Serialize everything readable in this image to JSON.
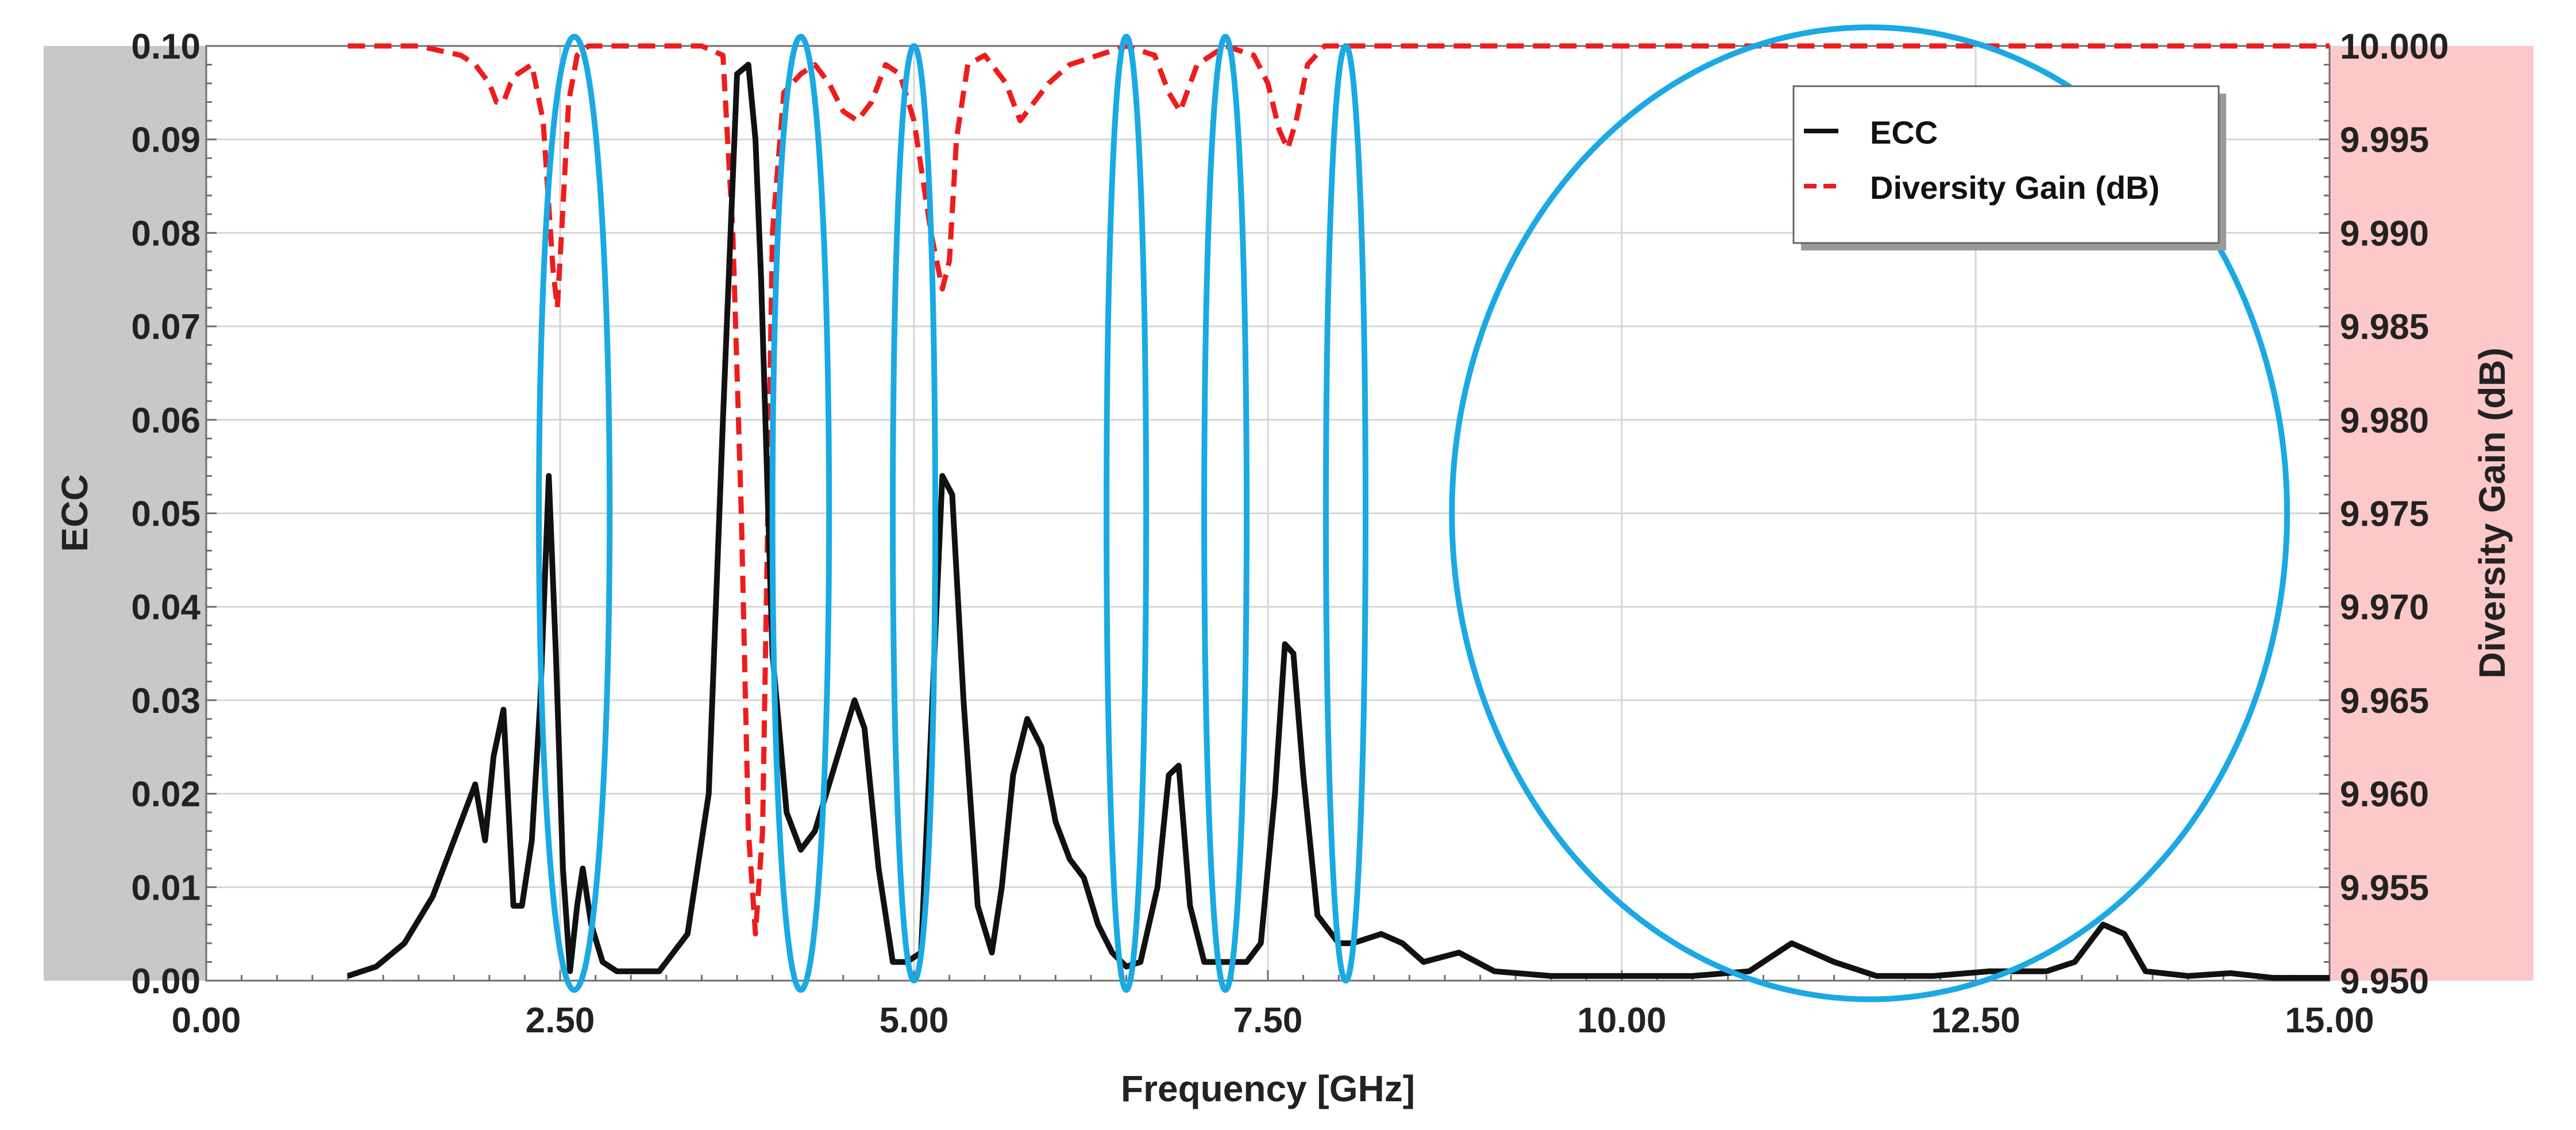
{
  "chart_data": {
    "type": "line",
    "title": "",
    "xlabel": "Frequency [GHz]",
    "ylabel": "ECC",
    "y2label": "Diversity Gain (dB)",
    "xlim": [
      0,
      15
    ],
    "ylim": [
      0,
      0.1
    ],
    "y2lim": [
      9.95,
      10.0
    ],
    "x_ticks": [
      "0.00",
      "2.50",
      "5.00",
      "7.50",
      "10.00",
      "12.50",
      "15.00"
    ],
    "y_ticks": [
      "0.00",
      "0.01",
      "0.02",
      "0.03",
      "0.04",
      "0.05",
      "0.06",
      "0.07",
      "0.08",
      "0.09",
      "0.10"
    ],
    "y2_ticks": [
      "9.950",
      "9.955",
      "9.960",
      "9.965",
      "9.970",
      "9.975",
      "9.980",
      "9.985",
      "9.990",
      "9.995",
      "10.000"
    ],
    "grid": true,
    "legend_position": "top-right",
    "colors": {
      "ecc": "#111111",
      "dg": "#ee1c1c",
      "highlight": "#1ba9e3",
      "left_band": "#c8c8c8",
      "right_band": "#fcc8c8",
      "grid": "#d6d6d6"
    },
    "series": [
      {
        "name": "ECC",
        "axis": "left",
        "style": "solid",
        "x": [
          1.0,
          1.2,
          1.4,
          1.6,
          1.75,
          1.9,
          1.97,
          2.03,
          2.1,
          2.17,
          2.23,
          2.3,
          2.36,
          2.42,
          2.47,
          2.52,
          2.57,
          2.62,
          2.66,
          2.72,
          2.8,
          2.9,
          3.0,
          3.2,
          3.4,
          3.55,
          3.65,
          3.75,
          3.83,
          3.88,
          3.92,
          4.0,
          4.1,
          4.2,
          4.3,
          4.4,
          4.5,
          4.58,
          4.65,
          4.75,
          4.85,
          4.95,
          5.05,
          5.13,
          5.2,
          5.27,
          5.35,
          5.45,
          5.55,
          5.62,
          5.7,
          5.8,
          5.9,
          6.0,
          6.1,
          6.2,
          6.3,
          6.4,
          6.5,
          6.6,
          6.72,
          6.8,
          6.87,
          6.95,
          7.05,
          7.2,
          7.35,
          7.45,
          7.55,
          7.62,
          7.68,
          7.75,
          7.85,
          8.0,
          8.1,
          8.3,
          8.45,
          8.6,
          8.85,
          9.1,
          9.5,
          10.0,
          10.5,
          10.9,
          11.2,
          11.5,
          11.8,
          12.2,
          12.6,
          13.0,
          13.2,
          13.4,
          13.55,
          13.7,
          14.0,
          14.3,
          14.6,
          15.0
        ],
        "values": [
          0.0005,
          0.0015,
          0.004,
          0.009,
          0.015,
          0.021,
          0.015,
          0.024,
          0.029,
          0.008,
          0.008,
          0.015,
          0.03,
          0.054,
          0.035,
          0.012,
          0.001,
          0.008,
          0.012,
          0.006,
          0.002,
          0.001,
          0.001,
          0.001,
          0.005,
          0.02,
          0.06,
          0.097,
          0.098,
          0.09,
          0.075,
          0.035,
          0.018,
          0.014,
          0.016,
          0.021,
          0.026,
          0.03,
          0.027,
          0.012,
          0.002,
          0.002,
          0.003,
          0.03,
          0.054,
          0.052,
          0.03,
          0.008,
          0.003,
          0.01,
          0.022,
          0.028,
          0.025,
          0.017,
          0.013,
          0.011,
          0.006,
          0.003,
          0.0015,
          0.002,
          0.01,
          0.022,
          0.023,
          0.008,
          0.002,
          0.002,
          0.002,
          0.004,
          0.02,
          0.036,
          0.035,
          0.022,
          0.007,
          0.004,
          0.004,
          0.005,
          0.004,
          0.002,
          0.003,
          0.001,
          0.0005,
          0.0005,
          0.0005,
          0.001,
          0.004,
          0.002,
          0.0005,
          0.0005,
          0.001,
          0.001,
          0.002,
          0.006,
          0.005,
          0.001,
          0.0005,
          0.0008,
          0.0003,
          0.0003
        ]
      },
      {
        "name": "Diversity Gain (dB)",
        "axis": "right",
        "style": "dashed",
        "x": [
          1.0,
          1.5,
          1.8,
          1.9,
          2.0,
          2.05,
          2.1,
          2.15,
          2.2,
          2.3,
          2.38,
          2.45,
          2.48,
          2.51,
          2.56,
          2.62,
          2.7,
          2.8,
          3.0,
          3.3,
          3.5,
          3.65,
          3.72,
          3.78,
          3.83,
          3.88,
          3.93,
          4.0,
          4.08,
          4.2,
          4.3,
          4.4,
          4.5,
          4.6,
          4.7,
          4.8,
          4.9,
          5.0,
          5.12,
          5.2,
          5.25,
          5.3,
          5.38,
          5.5,
          5.65,
          5.75,
          5.85,
          5.95,
          6.1,
          6.3,
          6.5,
          6.7,
          6.8,
          6.88,
          7.0,
          7.2,
          7.4,
          7.5,
          7.58,
          7.64,
          7.7,
          7.78,
          7.9,
          8.1,
          8.5,
          9.0,
          10.0,
          11.0,
          12.0,
          13.0,
          14.0,
          15.0
        ],
        "values": [
          10.0,
          10.0,
          9.9995,
          9.999,
          9.998,
          9.997,
          9.997,
          9.998,
          9.9985,
          9.999,
          9.996,
          9.988,
          9.986,
          9.99,
          9.997,
          9.9995,
          10.0,
          10.0,
          10.0,
          10.0,
          10.0,
          9.9995,
          9.99,
          9.975,
          9.958,
          9.9525,
          9.958,
          9.99,
          9.9975,
          9.9985,
          9.999,
          9.998,
          9.9965,
          9.996,
          9.997,
          9.999,
          9.9985,
          9.996,
          9.99,
          9.987,
          9.9885,
          9.995,
          9.999,
          9.9995,
          9.998,
          9.996,
          9.997,
          9.998,
          9.999,
          9.9995,
          10.0,
          9.9995,
          9.9975,
          9.9965,
          9.999,
          10.0,
          9.9995,
          9.998,
          9.9955,
          9.9945,
          9.996,
          9.999,
          10.0,
          10.0,
          10.0,
          10.0,
          10.0,
          10.0,
          10.0,
          10.0,
          10.0,
          10.0
        ]
      }
    ],
    "highlight_ellipses": [
      {
        "center_x": 2.6,
        "center_y": 0.05,
        "half_width": 0.25,
        "half_height": 0.051
      },
      {
        "center_x": 4.2,
        "center_y": 0.05,
        "half_width": 0.2,
        "half_height": 0.051
      },
      {
        "center_x": 5.0,
        "center_y": 0.05,
        "half_width": 0.15,
        "half_height": 0.05
      },
      {
        "center_x": 6.5,
        "center_y": 0.05,
        "half_width": 0.14,
        "half_height": 0.051
      },
      {
        "center_x": 7.2,
        "center_y": 0.05,
        "half_width": 0.15,
        "half_height": 0.051
      },
      {
        "center_x": 8.05,
        "center_y": 0.05,
        "half_width": 0.14,
        "half_height": 0.05
      },
      {
        "center_x": 11.75,
        "center_y": 0.05,
        "half_width": 2.95,
        "half_height": 0.052
      }
    ]
  }
}
